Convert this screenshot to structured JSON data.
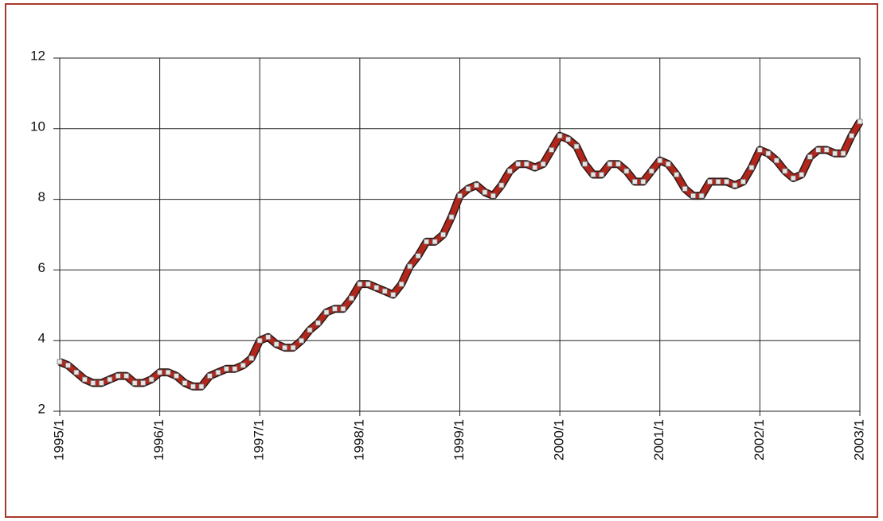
{
  "chart_data": {
    "type": "line",
    "categories": [
      "1995/1",
      null,
      null,
      null,
      null,
      null,
      null,
      null,
      null,
      null,
      null,
      null,
      "1996/1",
      null,
      null,
      null,
      null,
      null,
      null,
      null,
      null,
      null,
      null,
      null,
      "1997/1",
      null,
      null,
      null,
      null,
      null,
      null,
      null,
      null,
      null,
      null,
      null,
      "1998/1",
      null,
      null,
      null,
      null,
      null,
      null,
      null,
      null,
      null,
      null,
      null,
      "1999/1",
      null,
      null,
      null,
      null,
      null,
      null,
      null,
      null,
      null,
      null,
      null,
      "2000/1",
      null,
      null,
      null,
      null,
      null,
      null,
      null,
      null,
      null,
      null,
      null,
      "2001/1",
      null,
      null,
      null,
      null,
      null,
      null,
      null,
      null,
      null,
      null,
      null,
      "2002/1",
      null,
      null,
      null,
      null,
      null,
      null,
      null,
      null,
      null,
      null,
      null,
      "2003/1"
    ],
    "values": [
      3.4,
      3.3,
      3.1,
      2.9,
      2.8,
      2.8,
      2.9,
      3.0,
      3.0,
      2.8,
      2.8,
      2.9,
      3.1,
      3.1,
      3.0,
      2.8,
      2.7,
      2.7,
      3.0,
      3.1,
      3.2,
      3.2,
      3.3,
      3.5,
      4.0,
      4.1,
      3.9,
      3.8,
      3.8,
      4.0,
      4.3,
      4.5,
      4.8,
      4.9,
      4.9,
      5.2,
      5.6,
      5.6,
      5.5,
      5.4,
      5.3,
      5.6,
      6.1,
      6.4,
      6.8,
      6.8,
      7.0,
      7.5,
      8.1,
      8.3,
      8.4,
      8.2,
      8.1,
      8.4,
      8.8,
      9.0,
      9.0,
      8.9,
      9.0,
      9.4,
      9.8,
      9.7,
      9.5,
      9.0,
      8.7,
      8.7,
      9.0,
      9.0,
      8.8,
      8.5,
      8.5,
      8.8,
      9.1,
      9.0,
      8.7,
      8.3,
      8.1,
      8.1,
      8.5,
      8.5,
      8.5,
      8.4,
      8.5,
      8.9,
      9.4,
      9.3,
      9.1,
      8.8,
      8.6,
      8.7,
      9.2,
      9.4,
      9.4,
      9.3,
      9.3,
      9.8,
      10.2
    ],
    "color": "#b3261c",
    "ylim": [
      2,
      12
    ],
    "yticks": [
      2,
      4,
      6,
      8,
      10,
      12
    ],
    "grid": true
  }
}
